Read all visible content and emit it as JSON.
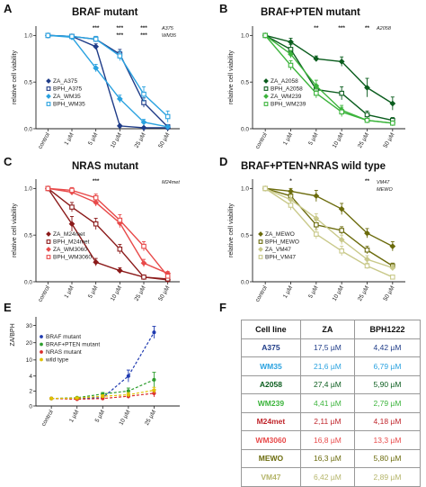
{
  "panels": {
    "A": {
      "letter": "A",
      "title": "BRAF mutant",
      "annotations": [
        "A375",
        "WM35"
      ]
    },
    "B": {
      "letter": "B",
      "title": "BRAF+PTEN mutant",
      "annotations": [
        "A2058"
      ]
    },
    "C": {
      "letter": "C",
      "title": "NRAS mutant",
      "annotations": [
        "M24met"
      ]
    },
    "D": {
      "letter": "D",
      "title": "BRAF+PTEN+NRAS wild type",
      "annotations": [
        "VM47",
        "MEWO"
      ]
    },
    "E": {
      "letter": "E",
      "title": ""
    },
    "F": {
      "letter": "F",
      "title": ""
    }
  },
  "chart_data": [
    {
      "id": "A",
      "type": "line",
      "title": "BRAF mutant",
      "ylabel": "relative cell viability",
      "xlabel": "",
      "categories": [
        "control",
        "1 µM",
        "5 µM",
        "10 µM",
        "25 µM",
        "50 µM"
      ],
      "ylim": [
        0,
        1.1
      ],
      "yticks": [
        "0.0",
        "0.5",
        "1.0"
      ],
      "significance": [
        "",
        "",
        "***",
        "***",
        "***",
        ""
      ],
      "significance2": [
        "",
        "",
        "",
        "***",
        "***",
        ""
      ],
      "legend_position": "left-middle",
      "series": [
        {
          "name": "ZA_A375",
          "color": "#1f3c88",
          "marker": "diamond-filled",
          "values": [
            1.0,
            0.99,
            0.88,
            0.03,
            0.01,
            0.01
          ],
          "err": [
            0.01,
            0.02,
            0.03,
            0.01,
            0.01,
            0.01
          ]
        },
        {
          "name": "BPH_A375",
          "color": "#1f3c88",
          "marker": "square-open",
          "values": [
            1.0,
            0.99,
            0.96,
            0.8,
            0.28,
            0.02
          ],
          "err": [
            0.01,
            0.02,
            0.03,
            0.05,
            0.05,
            0.02
          ]
        },
        {
          "name": "ZA_WM35",
          "color": "#2aa2e0",
          "marker": "diamond-filled",
          "values": [
            1.0,
            0.98,
            0.65,
            0.32,
            0.07,
            0.02
          ],
          "err": [
            0.01,
            0.02,
            0.04,
            0.04,
            0.03,
            0.01
          ]
        },
        {
          "name": "BPH_WM35",
          "color": "#2aa2e0",
          "marker": "square-open",
          "values": [
            1.0,
            0.99,
            0.96,
            0.78,
            0.37,
            0.13
          ],
          "err": [
            0.01,
            0.02,
            0.03,
            0.05,
            0.08,
            0.06
          ]
        }
      ]
    },
    {
      "id": "B",
      "type": "line",
      "title": "BRAF+PTEN mutant",
      "ylabel": "relative cell viability",
      "xlabel": "",
      "categories": [
        "control",
        "1 µM",
        "5 µM",
        "10 µM",
        "25 µM",
        "50 µM"
      ],
      "ylim": [
        0,
        1.1
      ],
      "yticks": [
        "0.0",
        "0.5",
        "1.0"
      ],
      "significance": [
        "",
        "",
        "**",
        "***",
        "**",
        ""
      ],
      "significance2": [
        "",
        "",
        "",
        "",
        "",
        ""
      ],
      "legend_position": "left-bottom",
      "series": [
        {
          "name": "ZA_A2058",
          "color": "#0b5d1e",
          "marker": "diamond-filled",
          "values": [
            1.0,
            0.93,
            0.75,
            0.72,
            0.44,
            0.27
          ],
          "err": [
            0.01,
            0.04,
            0.03,
            0.05,
            0.1,
            0.07
          ]
        },
        {
          "name": "BPH_A2058",
          "color": "#0b5d1e",
          "marker": "square-open",
          "values": [
            1.0,
            0.85,
            0.42,
            0.38,
            0.15,
            0.09
          ],
          "err": [
            0.01,
            0.05,
            0.05,
            0.07,
            0.04,
            0.03
          ]
        },
        {
          "name": "ZA_WM239",
          "color": "#3cb43c",
          "marker": "diamond-filled",
          "values": [
            1.0,
            0.8,
            0.46,
            0.2,
            0.09,
            0.06
          ],
          "err": [
            0.01,
            0.04,
            0.06,
            0.05,
            0.02,
            0.02
          ]
        },
        {
          "name": "BPH_WM239",
          "color": "#3cb43c",
          "marker": "square-open",
          "values": [
            1.0,
            0.68,
            0.38,
            0.18,
            0.09,
            0.06
          ],
          "err": [
            0.01,
            0.05,
            0.05,
            0.05,
            0.02,
            0.02
          ]
        }
      ]
    },
    {
      "id": "C",
      "type": "line",
      "title": "NRAS mutant",
      "ylabel": "relative cell viability",
      "xlabel": "",
      "categories": [
        "control",
        "1 µM",
        "5 µM",
        "10 µM",
        "25 µM",
        "50 µM"
      ],
      "ylim": [
        0,
        1.1
      ],
      "yticks": [
        "0.0",
        "0.5",
        "1.0"
      ],
      "significance": [
        "",
        "",
        "***",
        "",
        "",
        ""
      ],
      "significance2": [
        "",
        "",
        "",
        "",
        "",
        ""
      ],
      "legend_position": "left-bottom",
      "series": [
        {
          "name": "ZA_M24met",
          "color": "#8b1a1a",
          "marker": "diamond-filled",
          "values": [
            1.0,
            0.62,
            0.21,
            0.12,
            0.05,
            0.02
          ],
          "err": [
            0.01,
            0.08,
            0.04,
            0.03,
            0.02,
            0.01
          ]
        },
        {
          "name": "BPH_M24met",
          "color": "#8b1a1a",
          "marker": "square-open",
          "values": [
            1.0,
            0.8,
            0.62,
            0.35,
            0.05,
            0.03
          ],
          "err": [
            0.01,
            0.05,
            0.06,
            0.05,
            0.02,
            0.01
          ]
        },
        {
          "name": "ZA_WM3060",
          "color": "#e84a4a",
          "marker": "diamond-filled",
          "values": [
            1.0,
            0.96,
            0.85,
            0.63,
            0.2,
            0.09
          ],
          "err": [
            0.01,
            0.03,
            0.04,
            0.05,
            0.04,
            0.02
          ]
        },
        {
          "name": "BPH_WM3060",
          "color": "#e84a4a",
          "marker": "square-open",
          "values": [
            1.0,
            0.98,
            0.9,
            0.66,
            0.38,
            0.06
          ],
          "err": [
            0.01,
            0.03,
            0.04,
            0.06,
            0.05,
            0.02
          ]
        }
      ]
    },
    {
      "id": "D",
      "type": "line",
      "title": "BRAF+PTEN+NRAS wild type",
      "ylabel": "relative cell viability",
      "xlabel": "",
      "categories": [
        "control",
        "1 µM",
        "5 µM",
        "10 µM",
        "25 µM",
        "50 µM"
      ],
      "ylim": [
        0,
        1.1
      ],
      "yticks": [
        "0.0",
        "0.5",
        "1.0"
      ],
      "significance": [
        "",
        "*",
        "",
        "",
        "**",
        ""
      ],
      "significance2": [
        "",
        "",
        "",
        "",
        "",
        ""
      ],
      "legend_position": "left-bottom",
      "series": [
        {
          "name": "ZA_MEWO",
          "color": "#6b6b0c",
          "marker": "diamond-filled",
          "values": [
            1.0,
            0.97,
            0.92,
            0.78,
            0.52,
            0.38
          ],
          "err": [
            0.01,
            0.03,
            0.06,
            0.06,
            0.05,
            0.05
          ]
        },
        {
          "name": "BPH_MEWO",
          "color": "#6b6b0c",
          "marker": "square-open",
          "values": [
            1.0,
            0.92,
            0.61,
            0.55,
            0.34,
            0.17
          ],
          "err": [
            0.01,
            0.04,
            0.05,
            0.04,
            0.04,
            0.03
          ]
        },
        {
          "name": "ZA_VM47",
          "color": "#c9c98a",
          "marker": "diamond-filled",
          "values": [
            1.0,
            0.88,
            0.68,
            0.45,
            0.24,
            0.15
          ],
          "err": [
            0.01,
            0.05,
            0.05,
            0.05,
            0.04,
            0.03
          ]
        },
        {
          "name": "BPH_VM47",
          "color": "#c9c98a",
          "marker": "square-open",
          "values": [
            1.0,
            0.82,
            0.51,
            0.33,
            0.17,
            0.05
          ],
          "err": [
            0.01,
            0.05,
            0.05,
            0.05,
            0.03,
            0.02
          ]
        }
      ]
    },
    {
      "id": "E",
      "type": "line",
      "title": "",
      "ylabel": "ZA/BPH",
      "xlabel": "",
      "categories": [
        "control",
        "1 µM",
        "5 µM",
        "10 µM",
        "25 µM"
      ],
      "ylim": [
        0,
        35
      ],
      "yticks": [
        "0",
        "2",
        "4",
        "10",
        "20",
        "30"
      ],
      "legend_position": "left-middle",
      "series": [
        {
          "name": "BRAF mutant",
          "color": "#1f3ab0",
          "marker": "circle-filled",
          "values": [
            1.0,
            1.0,
            1.1,
            4.0,
            26.0
          ],
          "err": [
            0.0,
            0.05,
            0.2,
            0.8,
            3.5
          ]
        },
        {
          "name": "BRAF+PTEN mutant",
          "color": "#2e9e2e",
          "marker": "circle-filled",
          "values": [
            1.0,
            1.1,
            1.6,
            2.0,
            3.5
          ],
          "err": [
            0.0,
            0.05,
            0.2,
            0.4,
            1.0
          ]
        },
        {
          "name": "NRAS mutant",
          "color": "#d92b2b",
          "marker": "circle-filled",
          "values": [
            1.0,
            0.9,
            1.0,
            1.3,
            1.7
          ],
          "err": [
            0.0,
            0.05,
            0.15,
            0.3,
            0.5
          ]
        },
        {
          "name": "wild type",
          "color": "#e0c200",
          "marker": "circle-filled",
          "values": [
            1.0,
            1.05,
            1.3,
            1.5,
            2.1
          ],
          "err": [
            0.0,
            0.05,
            0.2,
            0.3,
            0.4
          ]
        }
      ]
    }
  ],
  "table_F": {
    "headers": [
      "Cell line",
      "ZA",
      "BPH1222"
    ],
    "rows": [
      {
        "cell": "A375",
        "za": "17,5 µM",
        "bph": "4,42 µM",
        "color": "#1f3c88"
      },
      {
        "cell": "WM35",
        "za": "21,6 µM",
        "bph": "6,79 µM",
        "color": "#2aa2e0"
      },
      {
        "cell": "A2058",
        "za": "27,4 µM",
        "bph": "5,90 µM",
        "color": "#0b5d1e"
      },
      {
        "cell": "WM239",
        "za": "4,41 µM",
        "bph": "2,79 µM",
        "color": "#3cb43c"
      },
      {
        "cell": "M24met",
        "za": "2,11 µM",
        "bph": "4,18 µM",
        "color": "#c0262c"
      },
      {
        "cell": "WM3060",
        "za": "16,8 µM",
        "bph": "13,3 µM",
        "color": "#e84a4a"
      },
      {
        "cell": "MEWO",
        "za": "16,3 µM",
        "bph": "5,80 µM",
        "color": "#6b6b0c"
      },
      {
        "cell": "VM47",
        "za": "6,42 µM",
        "bph": "2,89 µM",
        "color": "#b5b56a"
      }
    ]
  }
}
